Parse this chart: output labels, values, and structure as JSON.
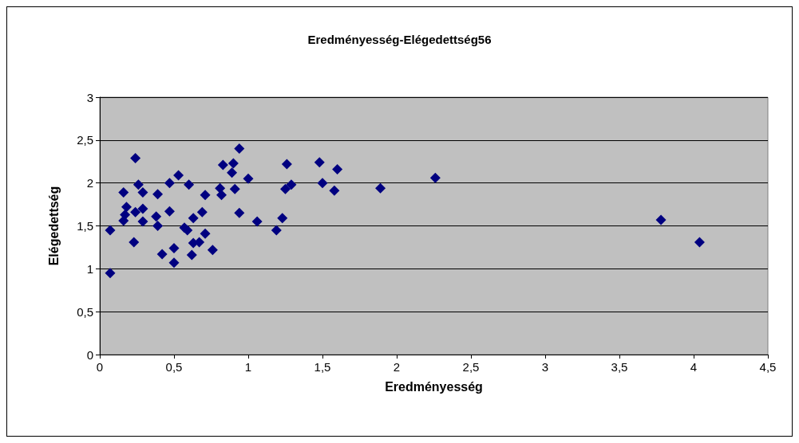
{
  "chart_data": {
    "type": "scatter",
    "title": "Eredményesség-Elégedettség56",
    "xlabel": "Eredményesség",
    "ylabel": "Elégedettség",
    "x": [
      0.24,
      0.07,
      0.07,
      0.16,
      0.26,
      0.29,
      0.18,
      0.17,
      0.16,
      0.24,
      0.29,
      0.29,
      0.23,
      0.39,
      0.38,
      0.39,
      0.47,
      0.53,
      0.47,
      0.42,
      0.5,
      0.5,
      0.6,
      0.57,
      0.59,
      0.63,
      0.69,
      0.71,
      0.71,
      0.63,
      0.67,
      0.62,
      0.76,
      0.83,
      0.9,
      0.89,
      0.94,
      1.0,
      0.81,
      0.82,
      0.91,
      0.94,
      1.06,
      1.19,
      1.23,
      1.26,
      1.25,
      1.29,
      1.48,
      1.6,
      1.5,
      1.58,
      1.89,
      2.26,
      3.78,
      4.04
    ],
    "values": [
      2.29,
      1.45,
      0.95,
      1.89,
      1.98,
      1.89,
      1.72,
      1.63,
      1.56,
      1.66,
      1.7,
      1.55,
      1.31,
      1.87,
      1.61,
      1.5,
      2.0,
      2.09,
      1.67,
      1.17,
      1.24,
      1.07,
      1.98,
      1.48,
      1.45,
      1.59,
      1.66,
      1.86,
      1.41,
      1.3,
      1.31,
      1.16,
      1.22,
      2.21,
      2.23,
      2.12,
      2.4,
      2.05,
      1.94,
      1.86,
      1.93,
      1.65,
      1.55,
      1.45,
      1.59,
      2.22,
      1.93,
      1.98,
      2.24,
      2.16,
      2.0,
      1.91,
      1.94,
      2.06,
      1.57,
      1.31
    ],
    "color": "#000080",
    "marker": "diamond",
    "grid": "y",
    "xlim": [
      0,
      4.5
    ],
    "xticks": [
      0,
      {
        "value": 0.5,
        "label": "0,5"
      },
      1,
      {
        "value": 1.5,
        "label": "1,5"
      },
      2,
      {
        "value": 2.5,
        "label": "2,5"
      },
      3,
      {
        "value": 3.5,
        "label": "3,5"
      },
      4,
      {
        "value": 4.5,
        "label": "4,5"
      }
    ],
    "ylim": [
      0,
      3
    ],
    "yticks": [
      0,
      {
        "value": 0.5,
        "label": "0,5"
      },
      1,
      {
        "value": 1.5,
        "label": "1,5"
      },
      2,
      {
        "value": 2.5,
        "label": "2,5"
      },
      3
    ]
  }
}
